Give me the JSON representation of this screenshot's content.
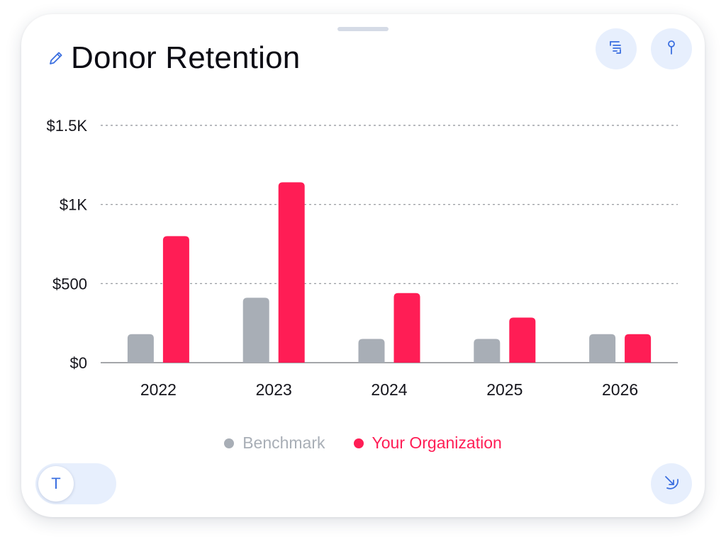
{
  "card": {
    "title": "Donor Retention",
    "toggle_label": "T"
  },
  "icons": {
    "edit": "pencil-icon",
    "list": "list-indent-icon",
    "pin": "pin-icon",
    "collapse": "arrow-down-right-icon"
  },
  "colors": {
    "benchmark": "#a8aeb6",
    "organization": "#ff1d55",
    "accent": "#3b6fe0",
    "button_bg": "#e7effd"
  },
  "chart_data": {
    "type": "bar",
    "title": "Donor Retention",
    "xlabel": "",
    "ylabel": "",
    "categories": [
      "2022",
      "2023",
      "2024",
      "2025",
      "2026"
    ],
    "series": [
      {
        "name": "Benchmark",
        "color": "#a8aeb6",
        "values": [
          180,
          410,
          150,
          150,
          180
        ]
      },
      {
        "name": "Your Organization",
        "color": "#ff1d55",
        "values": [
          800,
          1140,
          440,
          285,
          180
        ]
      }
    ],
    "ylim": [
      0,
      1500
    ],
    "yticks": [
      0,
      500,
      1000,
      1500
    ],
    "ytick_labels": [
      "$0",
      "$500",
      "$1K",
      "$1.5K"
    ],
    "grid": true,
    "legend_position": "bottom-center"
  }
}
